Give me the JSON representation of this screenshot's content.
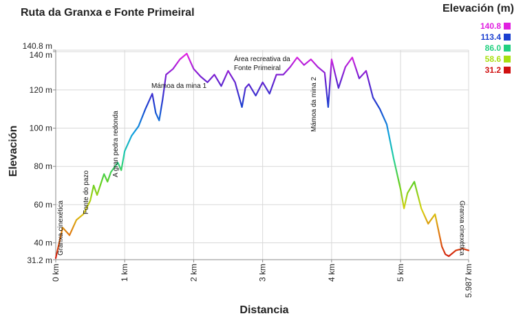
{
  "chart_data": {
    "type": "area",
    "title": "Ruta da Granxa e Fonte Primeiral",
    "xlabel": "Distancia",
    "ylabel": "Elevación",
    "xlim": [
      0,
      5.987
    ],
    "ylim": [
      31.2,
      140.8
    ],
    "grid": true,
    "y_ticks": [
      {
        "value": 31.2,
        "label": "31.2 m"
      },
      {
        "value": 40,
        "label": "40 m"
      },
      {
        "value": 60,
        "label": "60 m"
      },
      {
        "value": 80,
        "label": "80 m"
      },
      {
        "value": 100,
        "label": "100 m"
      },
      {
        "value": 120,
        "label": "120 m"
      },
      {
        "value": 140,
        "label": "140 m"
      },
      {
        "value": 140.8,
        "label": "140.8 m"
      }
    ],
    "x_ticks": [
      {
        "value": 0,
        "label": "0 km"
      },
      {
        "value": 1,
        "label": "1 km"
      },
      {
        "value": 2,
        "label": "2 km"
      },
      {
        "value": 3,
        "label": "3 km"
      },
      {
        "value": 4,
        "label": "4 km"
      },
      {
        "value": 5,
        "label": "5 km"
      },
      {
        "value": 5.987,
        "label": "5.987 km"
      }
    ],
    "legend": {
      "title": "Elevación (m)",
      "placement": "top-right",
      "entries": [
        {
          "label": "140.8",
          "color": "#e020e0"
        },
        {
          "label": "113.4",
          "color": "#1a3fd0"
        },
        {
          "label": "86.0",
          "color": "#22d080"
        },
        {
          "label": "58.6",
          "color": "#a8e010"
        },
        {
          "label": "31.2",
          "color": "#d01010"
        }
      ]
    },
    "annotations": [
      {
        "x": 0.06,
        "label": "Granxa cinexética"
      },
      {
        "x": 0.43,
        "label": "Fonte do pazo"
      },
      {
        "x": 0.86,
        "label": "A gran pedra redonda"
      },
      {
        "x": 1.6,
        "label": "Mámoa da mina 1"
      },
      {
        "x": 2.6,
        "label": "Área recreativa da Fonte Primeiral"
      },
      {
        "x": 3.73,
        "label": "Mámoa da mina 2"
      },
      {
        "x": 5.9,
        "label": "Granxa cinexética"
      }
    ],
    "x": [
      0,
      0.1,
      0.2,
      0.3,
      0.4,
      0.5,
      0.55,
      0.6,
      0.7,
      0.75,
      0.8,
      0.9,
      0.95,
      1.0,
      1.1,
      1.2,
      1.3,
      1.4,
      1.45,
      1.5,
      1.55,
      1.6,
      1.7,
      1.8,
      1.9,
      2.0,
      2.1,
      2.2,
      2.3,
      2.4,
      2.5,
      2.6,
      2.7,
      2.75,
      2.8,
      2.9,
      3.0,
      3.1,
      3.2,
      3.3,
      3.4,
      3.5,
      3.6,
      3.7,
      3.8,
      3.9,
      3.95,
      4.0,
      4.1,
      4.2,
      4.3,
      4.4,
      4.5,
      4.6,
      4.7,
      4.8,
      4.9,
      5.0,
      5.05,
      5.1,
      5.2,
      5.3,
      5.4,
      5.5,
      5.6,
      5.65,
      5.7,
      5.8,
      5.9,
      5.987
    ],
    "y": [
      32,
      48,
      44,
      52,
      55,
      62,
      70,
      65,
      76,
      72,
      77,
      82,
      78,
      88,
      96,
      101,
      110,
      118,
      108,
      104,
      115,
      128,
      131,
      136,
      139,
      131,
      127,
      124,
      128,
      122,
      130,
      124,
      111,
      121,
      123,
      117,
      124,
      118,
      128,
      128,
      132,
      137,
      133,
      136,
      132,
      129,
      111,
      136,
      121,
      132,
      137,
      126,
      130,
      116,
      110,
      102,
      84,
      68,
      58,
      66,
      72,
      58,
      50,
      55,
      38,
      34,
      33,
      36,
      37,
      36
    ]
  }
}
